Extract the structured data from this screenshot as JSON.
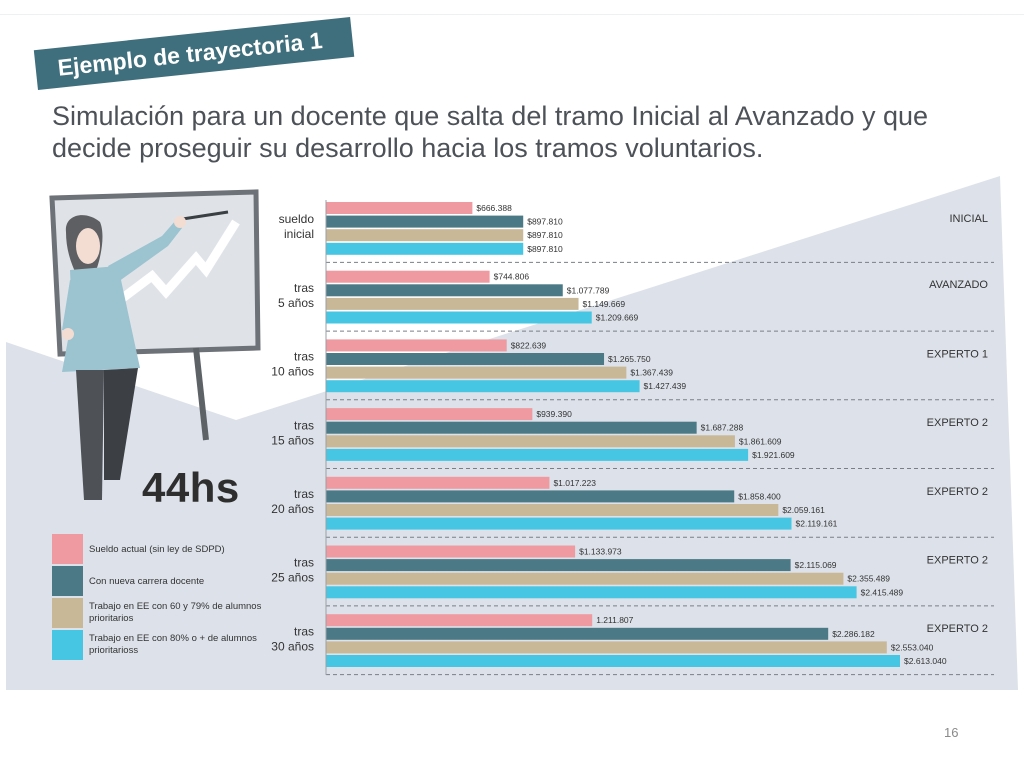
{
  "slide": {
    "banner_title": "Ejemplo de trayectoria 1",
    "subtitle_line1": "Simulación para un docente que salta del tramo Inicial al Avanzado y que",
    "subtitle_line2": "decide proseguir su desarrollo hacia los tramos voluntarios.",
    "hours_label": "44hs",
    "page_number": "16"
  },
  "colors": {
    "banner": "#3f6f7d",
    "background_shape": "#dde2ea",
    "series": [
      "#ef9aa0",
      "#4b7a86",
      "#c9b898",
      "#47c6e3"
    ]
  },
  "legend": [
    {
      "label": "Sueldo actual (sin ley de SDPD)",
      "color": "#ef9aa0"
    },
    {
      "label": "Con nueva carrera docente",
      "color": "#4b7a86"
    },
    {
      "label": "Trabajo en EE con 60 y 79% de alumnos prioritarios",
      "color": "#c9b898"
    },
    {
      "label": "Trabajo en EE con 80% o + de alumnos prioritarioss",
      "color": "#47c6e3"
    }
  ],
  "chart_data": {
    "type": "bar",
    "orientation": "horizontal",
    "groups": [
      {
        "label": [
          "sueldo",
          "inicial"
        ],
        "tramo": "INICIAL",
        "values": [
          666388,
          897810,
          897810,
          897810
        ],
        "value_labels": [
          "$666.388",
          "$897.810",
          "$897.810",
          "$897.810"
        ]
      },
      {
        "label": [
          "tras",
          "5 años"
        ],
        "tramo": "AVANZADO",
        "values": [
          744806,
          1077789,
          1149669,
          1209669
        ],
        "value_labels": [
          "$744.806",
          "$1.077.789",
          "$1.149.669",
          "$1.209.669"
        ]
      },
      {
        "label": [
          "tras",
          "10 años"
        ],
        "tramo": "EXPERTO 1",
        "values": [
          822639,
          1265750,
          1367439,
          1427439
        ],
        "value_labels": [
          "$822.639",
          "$1.265.750",
          "$1.367.439",
          "$1.427.439"
        ]
      },
      {
        "label": [
          "tras",
          "15 años"
        ],
        "tramo": "EXPERTO 2",
        "values": [
          939390,
          1687288,
          1861609,
          1921609
        ],
        "value_labels": [
          "$939.390",
          "$1.687.288",
          "$1.861.609",
          "$1.921.609"
        ]
      },
      {
        "label": [
          "tras",
          "20 años"
        ],
        "tramo": "EXPERTO 2",
        "values": [
          1017223,
          1858400,
          2059161,
          2119161
        ],
        "value_labels": [
          "$1.017.223",
          "$1.858.400",
          "$2.059.161",
          "$2.119.161"
        ]
      },
      {
        "label": [
          "tras",
          "25 años"
        ],
        "tramo": "EXPERTO 2",
        "values": [
          1133973,
          2115069,
          2355489,
          2415489
        ],
        "value_labels": [
          "$1.133.973",
          "$2.115.069",
          "$2.355.489",
          "$2.415.489"
        ]
      },
      {
        "label": [
          "tras",
          "30 años"
        ],
        "tramo": "EXPERTO 2",
        "values": [
          1211807,
          2286182,
          2553040,
          2613040
        ],
        "value_labels": [
          "1.211.807",
          "$2.286.182",
          "$2.553.040",
          "$2.613.040"
        ]
      }
    ],
    "series": [
      {
        "name": "Sueldo actual (sin ley de SDPD)"
      },
      {
        "name": "Con nueva carrera docente"
      },
      {
        "name": "Trabajo en EE con 60 y 79% de alumnos prioritarios"
      },
      {
        "name": "Trabajo en EE con 80% o + de alumnos prioritarioss"
      }
    ],
    "xlim": [
      0,
      2613040
    ],
    "grid": false
  }
}
